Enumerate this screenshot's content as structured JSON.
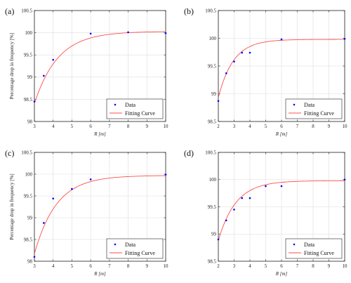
{
  "colors": {
    "data": "#0000ff",
    "fit": "#ff4d4d",
    "grid": "#dddddd",
    "axis": "#222222"
  },
  "chart_data": [
    {
      "type": "scatter",
      "panel_label": "(a)",
      "xlabel_var": "R",
      "xlabel_unit": "[m]",
      "ylabel": "Percentage drop in frequency [%]",
      "xlim": [
        3,
        10
      ],
      "ylim": [
        98,
        100.5
      ],
      "xticks": [
        3,
        4,
        5,
        6,
        7,
        8,
        9,
        10
      ],
      "yticks": [
        98,
        98.5,
        99,
        99.5,
        100,
        100.5
      ],
      "xtick_labels": [
        "3",
        "4",
        "5",
        "6",
        "7",
        "8",
        "9",
        "10"
      ],
      "ytick_labels": [
        "98",
        "98.5",
        "99",
        "99.5",
        "100",
        "100.5"
      ],
      "grid": true,
      "legend_position": "bottom-right",
      "series": [
        {
          "name": "Data",
          "kind": "points",
          "x": [
            3,
            3.5,
            4,
            6,
            8,
            10
          ],
          "y": [
            98.45,
            99.03,
            99.39,
            99.98,
            100.01,
            99.99
          ]
        },
        {
          "name": "Fitting Curve",
          "kind": "fit",
          "model": {
            "a": 100.03,
            "b": 1.63,
            "k": 0.8,
            "x0": 3
          }
        }
      ]
    },
    {
      "type": "scatter",
      "panel_label": "(b)",
      "xlabel_var": "R",
      "xlabel_unit": "[m]",
      "ylabel": "",
      "xlim": [
        2,
        10
      ],
      "ylim": [
        98.5,
        100.5
      ],
      "xticks": [
        2,
        3,
        4,
        5,
        6,
        7,
        8,
        9,
        10
      ],
      "yticks": [
        98.5,
        99,
        99.5,
        100,
        100.5
      ],
      "xtick_labels": [
        "2",
        "3",
        "4",
        "5",
        "6",
        "7",
        "8",
        "9",
        "10"
      ],
      "ytick_labels": [
        "98.5",
        "99",
        "99.5",
        "100",
        "100.5"
      ],
      "grid": true,
      "legend_position": "bottom-right",
      "series": [
        {
          "name": "Data",
          "kind": "points",
          "x": [
            2,
            2.5,
            3,
            3.5,
            4,
            6,
            10
          ],
          "y": [
            98.87,
            99.37,
            99.58,
            99.74,
            99.74,
            99.98,
            99.99
          ]
        },
        {
          "name": "Fitting Curve",
          "kind": "fit",
          "model": {
            "a": 99.98,
            "b": 1.05,
            "k": 1.05,
            "x0": 2
          }
        }
      ]
    },
    {
      "type": "scatter",
      "panel_label": "(c)",
      "xlabel_var": "R",
      "xlabel_unit": "[m]",
      "ylabel": "Percentage drop in frequency [%]",
      "xlim": [
        3,
        10
      ],
      "ylim": [
        98,
        100.5
      ],
      "xticks": [
        3,
        4,
        5,
        6,
        7,
        8,
        9,
        10
      ],
      "yticks": [
        98,
        98.5,
        99,
        99.5,
        100,
        100.5
      ],
      "xtick_labels": [
        "3",
        "4",
        "5",
        "6",
        "7",
        "8",
        "9",
        "10"
      ],
      "ytick_labels": [
        "98",
        "98.5",
        "99",
        "99.5",
        "100",
        "100.5"
      ],
      "grid": true,
      "legend_position": "bottom-right",
      "series": [
        {
          "name": "Data",
          "kind": "points",
          "x": [
            3,
            3.5,
            4,
            5,
            6,
            10
          ],
          "y": [
            98.1,
            98.88,
            99.44,
            99.66,
            99.88,
            99.99
          ]
        },
        {
          "name": "Fitting Curve",
          "kind": "fit",
          "model": {
            "a": 99.97,
            "b": 1.8,
            "k": 0.85,
            "x0": 3
          }
        }
      ]
    },
    {
      "type": "scatter",
      "panel_label": "(d)",
      "xlabel_var": "R",
      "xlabel_unit": "[m]",
      "ylabel": "",
      "xlim": [
        2,
        10
      ],
      "ylim": [
        98.5,
        100.5
      ],
      "xticks": [
        2,
        3,
        4,
        5,
        6,
        7,
        8,
        9,
        10
      ],
      "yticks": [
        98.5,
        99,
        99.5,
        100,
        100.5
      ],
      "xtick_labels": [
        "2",
        "3",
        "4",
        "5",
        "6",
        "7",
        "8",
        "9",
        "10"
      ],
      "ytick_labels": [
        "98.5",
        "99",
        "99.5",
        "100",
        "100.5"
      ],
      "grid": true,
      "legend_position": "bottom-right",
      "series": [
        {
          "name": "Data",
          "kind": "points",
          "x": [
            2,
            2.5,
            3,
            3.5,
            4,
            5,
            6,
            10
          ],
          "y": [
            98.9,
            99.25,
            99.45,
            99.66,
            99.66,
            99.88,
            99.88,
            100.0
          ]
        },
        {
          "name": "Fitting Curve",
          "kind": "fit",
          "model": {
            "a": 99.98,
            "b": 1.1,
            "k": 0.9,
            "x0": 2
          }
        }
      ]
    }
  ]
}
